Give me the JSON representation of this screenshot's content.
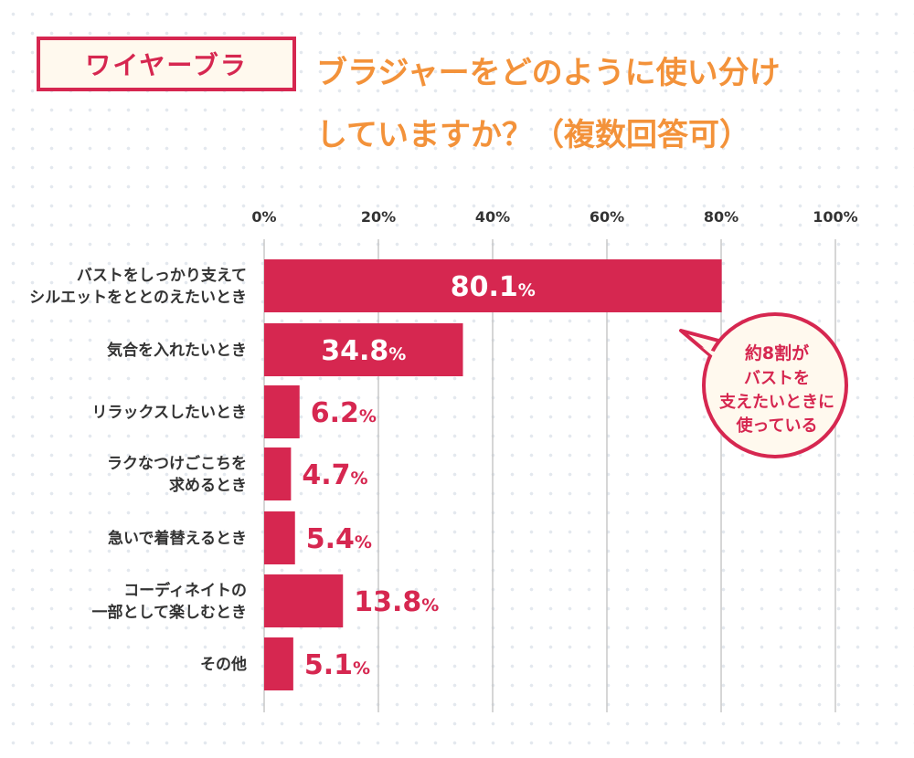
{
  "tag": "ワイヤーブラ",
  "title_lines": [
    "ブラジャーをどのように使い分け",
    "していますか？（複数回答可）"
  ],
  "callout": [
    "約8割が",
    "バストを",
    "支えたいときに",
    "使っている"
  ],
  "colors": {
    "bar": "#d62750",
    "title": "#f3923a",
    "grid": "#c8c8c8",
    "callout_bg": "#fff9ee"
  },
  "chart_data": {
    "type": "bar",
    "orientation": "horizontal",
    "categories": [
      [
        "バストをしっかり支えて",
        "シルエットをととのえたいとき"
      ],
      [
        "気合を入れたいとき"
      ],
      [
        "リラックスしたいとき"
      ],
      [
        "ラクなつけごこちを",
        "求めるとき"
      ],
      [
        "急いで着替えるとき"
      ],
      [
        "コーディネイトの",
        "一部として楽しむとき"
      ],
      [
        "その他"
      ]
    ],
    "values": [
      80.1,
      34.8,
      6.2,
      4.7,
      5.4,
      13.8,
      5.1
    ],
    "data_labels": [
      "80.1",
      "34.8",
      "6.2",
      "4.7",
      "5.4",
      "13.8",
      "5.1"
    ],
    "unit": "%",
    "xlim": [
      0,
      100
    ],
    "xticks": [
      "0%",
      "20%",
      "40%",
      "60%",
      "80%",
      "100%"
    ],
    "grid": true
  }
}
